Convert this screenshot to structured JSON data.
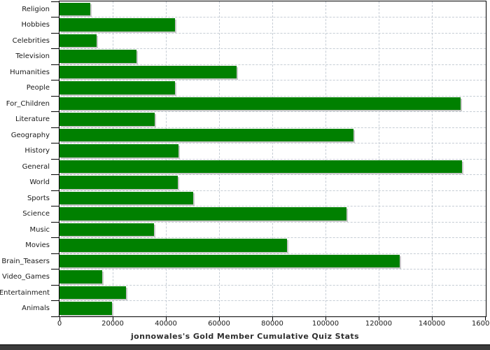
{
  "chart_data": {
    "type": "bar",
    "orientation": "horizontal",
    "title": "jonnowales's Gold Member Cumulative Quiz Stats",
    "categories": [
      "Religion",
      "Hobbies",
      "Celebrities",
      "Television",
      "Humanities",
      "People",
      "For_Children",
      "Literature",
      "Geography",
      "History",
      "General",
      "World",
      "Sports",
      "Science",
      "Music",
      "Movies",
      "Brain_Teasers",
      "Video_Games",
      "Entertainment",
      "Animals"
    ],
    "values": [
      11600,
      43400,
      13900,
      29000,
      66500,
      43400,
      150900,
      35700,
      110500,
      44700,
      151200,
      44500,
      50300,
      107900,
      35500,
      85600,
      128000,
      16000,
      25000,
      19800
    ],
    "x_ticks": [
      0,
      20000,
      40000,
      60000,
      80000,
      100000,
      120000,
      140000,
      160000
    ],
    "x_tick_labels": [
      "0",
      "20000",
      "40000",
      "60000",
      "80000",
      "100000",
      "120000",
      "140000",
      "160000"
    ],
    "xlim": [
      0,
      160000
    ],
    "grid": true,
    "legend": "none",
    "colors": {
      "bar": "#008000",
      "bar_shadow": "#c9c9c9",
      "gridline": "#c6cdd5",
      "axis": "#000000",
      "text": "#1a1a1a",
      "footer_bar": "#3b3b3b",
      "background": "#ffffff"
    }
  }
}
